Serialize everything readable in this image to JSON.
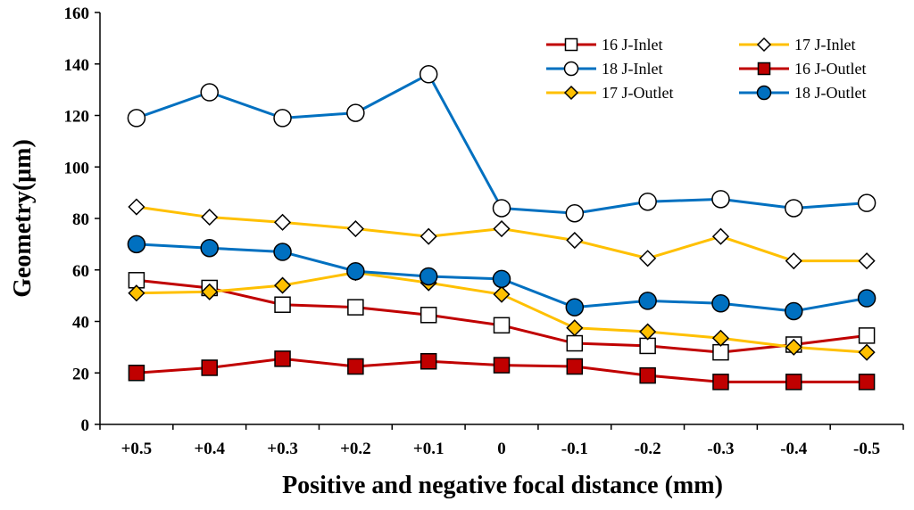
{
  "chart_data": {
    "type": "line",
    "title": "",
    "xlabel": "Positive and negative focal distance (mm)",
    "ylabel": "Geometry(μm)",
    "ylim": [
      0,
      160
    ],
    "yticks": [
      0,
      20,
      40,
      60,
      80,
      100,
      120,
      140,
      160
    ],
    "categories": [
      "+0.5",
      "+0.4",
      "+0.3",
      "+0.2",
      "+0.1",
      "0",
      "-0.1",
      "-0.2",
      "-0.3",
      "-0.4",
      "-0.5"
    ],
    "grid": false,
    "legend_position": "top-right",
    "series": [
      {
        "name": "16 J-Inlet",
        "color": "#c00000",
        "marker": "square",
        "fill": "#ffffff",
        "values": [
          56,
          53,
          46.5,
          45.5,
          42.5,
          38.5,
          31.5,
          30.5,
          28,
          31,
          34.5
        ]
      },
      {
        "name": "17 J-Inlet",
        "color": "#ffc000",
        "marker": "diamond",
        "fill": "#ffffff",
        "values": [
          84.5,
          80.5,
          78.5,
          76,
          73,
          76,
          71.5,
          64.5,
          73,
          63.5,
          63.5
        ]
      },
      {
        "name": "18 J-Inlet",
        "color": "#0070c0",
        "marker": "circle",
        "fill": "#ffffff",
        "values": [
          119,
          129,
          119,
          121,
          136,
          84,
          82,
          86.5,
          87.5,
          84,
          86
        ]
      },
      {
        "name": "16 J-Outlet",
        "color": "#c00000",
        "marker": "square",
        "fill": "#c00000",
        "values": [
          20,
          22,
          25.5,
          22.5,
          24.5,
          23,
          22.5,
          19,
          16.5,
          16.5,
          16.5
        ]
      },
      {
        "name": "17 J-Outlet",
        "color": "#ffc000",
        "marker": "diamond",
        "fill": "#ffc000",
        "values": [
          51,
          51.5,
          54,
          59,
          55,
          50.5,
          37.5,
          36,
          33.5,
          30,
          28
        ]
      },
      {
        "name": "18 J-Outlet",
        "color": "#0070c0",
        "marker": "circle",
        "fill": "#0070c0",
        "values": [
          70,
          68.5,
          67,
          59.5,
          57.5,
          56.5,
          45.5,
          48,
          47,
          44,
          49
        ]
      }
    ]
  }
}
